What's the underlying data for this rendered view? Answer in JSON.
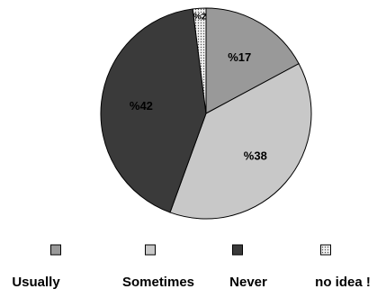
{
  "chart_data": {
    "type": "pie",
    "title": "",
    "slices": [
      {
        "name": "Usually",
        "value": 17,
        "label": "%17",
        "color": "#999999",
        "pattern": "solid"
      },
      {
        "name": "Sometimes",
        "value": 38,
        "label": "%38",
        "color": "#c8c8c8",
        "pattern": "solid"
      },
      {
        "name": "Never",
        "value": 42,
        "label": "%42",
        "color": "#3a3a3a",
        "pattern": "solid"
      },
      {
        "name": "no idea !",
        "value": 2,
        "label": "%2",
        "color": "#f0f0f0",
        "pattern": "dotted"
      }
    ],
    "legend_position": "bottom",
    "start_direction": "top",
    "clockwise": true,
    "slice_border_color": "#000000"
  }
}
